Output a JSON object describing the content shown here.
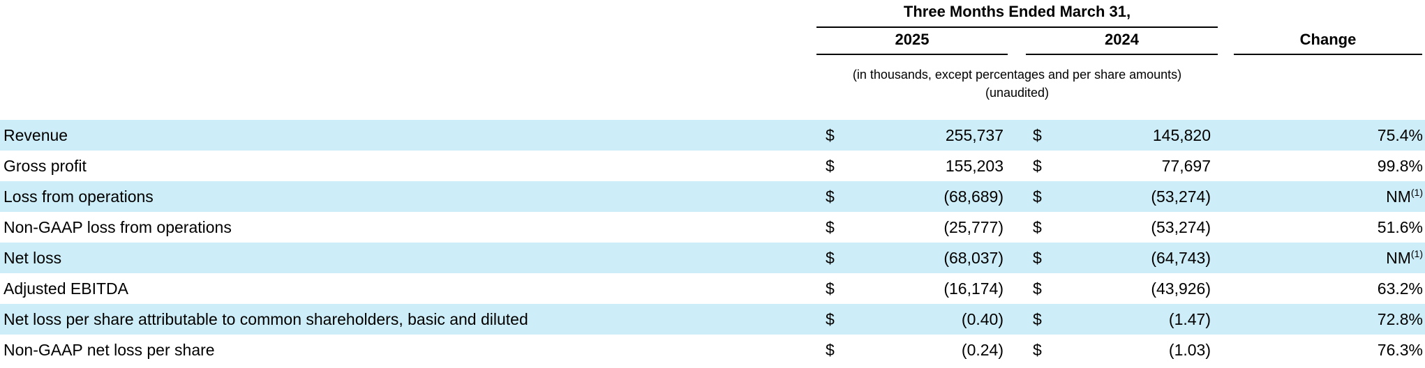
{
  "header": {
    "period_title": "Three Months Ended March 31,",
    "col_2025": "2025",
    "col_2024": "2024",
    "col_change": "Change",
    "units_note": "(in thousands, except percentages and per share amounts)",
    "audit_note": "(unaudited)"
  },
  "rows": [
    {
      "label": "Revenue",
      "cur_2025": "$",
      "val_2025": "255,737",
      "cur_2024": "$",
      "val_2024": "145,820",
      "change": "75.4%",
      "change_note": ""
    },
    {
      "label": "Gross profit",
      "cur_2025": "$",
      "val_2025": "155,203",
      "cur_2024": "$",
      "val_2024": "77,697",
      "change": "99.8%",
      "change_note": ""
    },
    {
      "label": "Loss from operations",
      "cur_2025": "$",
      "val_2025": "(68,689)",
      "cur_2024": "$",
      "val_2024": "(53,274)",
      "change": "NM",
      "change_note": "(1)"
    },
    {
      "label": "Non-GAAP loss from operations",
      "cur_2025": "$",
      "val_2025": "(25,777)",
      "cur_2024": "$",
      "val_2024": "(53,274)",
      "change": "51.6%",
      "change_note": ""
    },
    {
      "label": "Net loss",
      "cur_2025": "$",
      "val_2025": "(68,037)",
      "cur_2024": "$",
      "val_2024": "(64,743)",
      "change": "NM",
      "change_note": "(1)"
    },
    {
      "label": "Adjusted EBITDA",
      "cur_2025": "$",
      "val_2025": "(16,174)",
      "cur_2024": "$",
      "val_2024": "(43,926)",
      "change": "63.2%",
      "change_note": ""
    },
    {
      "label": "Net loss per share attributable to common shareholders, basic and diluted",
      "cur_2025": "$",
      "val_2025": "(0.40)",
      "cur_2024": "$",
      "val_2024": "(1.47)",
      "change": "72.8%",
      "change_note": ""
    },
    {
      "label": "Non-GAAP net loss per share",
      "cur_2025": "$",
      "val_2025": "(0.24)",
      "cur_2024": "$",
      "val_2024": "(1.03)",
      "change": "76.3%",
      "change_note": ""
    }
  ],
  "colors": {
    "shade": "#cdeef8",
    "text": "#000000"
  }
}
